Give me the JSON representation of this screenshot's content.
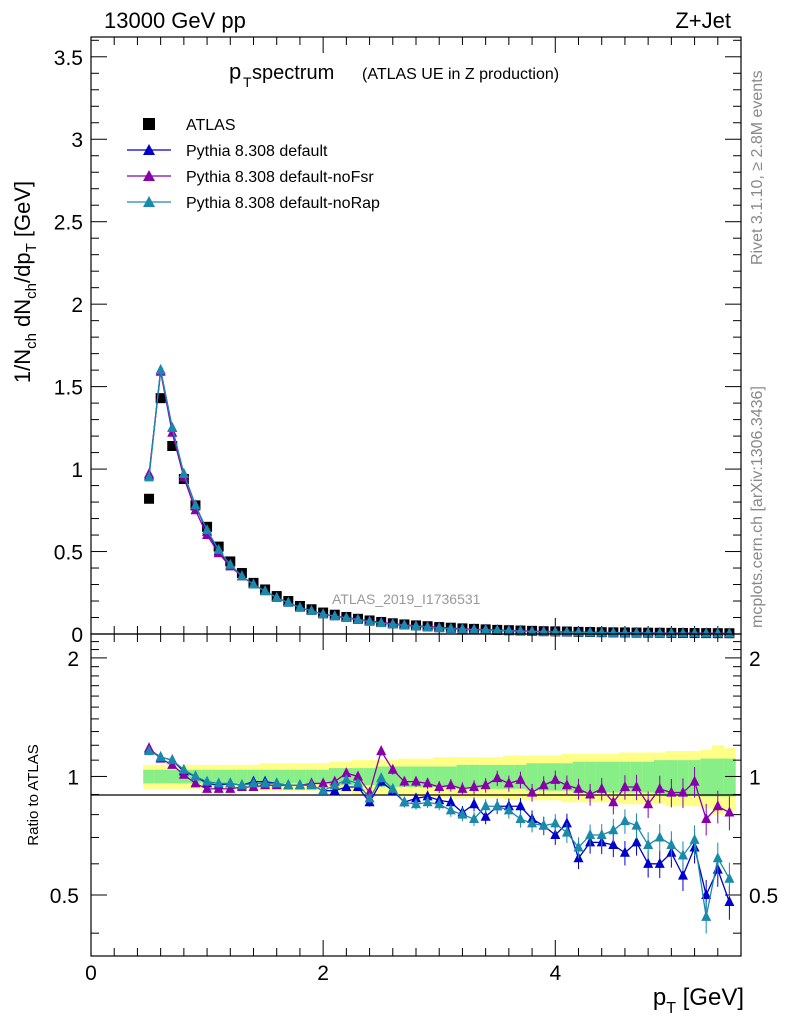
{
  "header": {
    "energy": "13000 GeV pp",
    "process": "Z+Jet"
  },
  "side_labels": {
    "rivet": "Rivet 3.1.10, ≥ 2.8M events",
    "source": "mcplots.cern.ch [arXiv:1306.3436]"
  },
  "chart_data": [
    {
      "type": "scatter",
      "panel": "main",
      "title": "(ATLAS UE in Z production)",
      "title_prefix": "p",
      "title_sub": "T",
      "title_suffix": " spectrum",
      "watermark": "ATLAS_2019_I1736531",
      "ylabel": "1/N_ch dN_ch/dp_T [GeV]",
      "xlim": [
        0,
        5.6
      ],
      "ylim": [
        0,
        3.62
      ],
      "yticks": [
        "0",
        "0.5",
        "1",
        "1.5",
        "2",
        "2.5",
        "3",
        "3.5"
      ],
      "grid": false,
      "legend_position": "top-left",
      "x": [
        0.5,
        0.6,
        0.7,
        0.8,
        0.9,
        1.0,
        1.1,
        1.2,
        1.3,
        1.4,
        1.5,
        1.6,
        1.7,
        1.8,
        1.9,
        2.0,
        2.1,
        2.2,
        2.3,
        2.4,
        2.5,
        2.6,
        2.7,
        2.8,
        2.9,
        3.0,
        3.1,
        3.2,
        3.3,
        3.4,
        3.5,
        3.6,
        3.7,
        3.8,
        3.9,
        4.0,
        4.1,
        4.2,
        4.3,
        4.4,
        4.5,
        4.6,
        4.7,
        4.8,
        4.9,
        5.0,
        5.1,
        5.2,
        5.3,
        5.4,
        5.5
      ],
      "series": [
        {
          "name": "ATLAS",
          "color": "#000000",
          "marker": "square",
          "values": [
            0.82,
            1.43,
            1.14,
            0.94,
            0.78,
            0.65,
            0.53,
            0.44,
            0.37,
            0.31,
            0.27,
            0.23,
            0.2,
            0.17,
            0.15,
            0.13,
            0.117,
            0.103,
            0.092,
            0.082,
            0.073,
            0.065,
            0.058,
            0.052,
            0.047,
            0.042,
            0.038,
            0.034,
            0.031,
            0.028,
            0.025,
            0.023,
            0.021,
            0.019,
            0.017,
            0.016,
            0.015,
            0.013,
            0.012,
            0.011,
            0.01,
            0.0095,
            0.0087,
            0.008,
            0.0074,
            0.0068,
            0.0063,
            0.0058,
            0.0054,
            0.005,
            0.0046
          ]
        },
        {
          "name": "Pythia 8.308 default",
          "color": "#0000cc",
          "marker": "triangle",
          "values": [
            0.96,
            1.6,
            1.25,
            0.97,
            0.78,
            0.62,
            0.5,
            0.42,
            0.35,
            0.3,
            0.26,
            0.22,
            0.19,
            0.16,
            0.14,
            0.12,
            0.108,
            0.097,
            0.086,
            0.075,
            0.067,
            0.058,
            0.052,
            0.046,
            0.041,
            0.036,
            0.032,
            0.029,
            0.026,
            0.024,
            0.021,
            0.019,
            0.017,
            0.015,
            0.013,
            0.012,
            0.01,
            0.009,
            0.008,
            0.0075,
            0.0068,
            0.006,
            0.0055,
            0.005,
            0.0045,
            0.0042,
            0.0038,
            0.0034,
            0.003,
            0.0028,
            0.0025
          ]
        },
        {
          "name": "Pythia 8.308 default-noFsr",
          "color": "#8800aa",
          "marker": "triangle",
          "values": [
            0.97,
            1.59,
            1.22,
            0.95,
            0.75,
            0.6,
            0.49,
            0.41,
            0.35,
            0.3,
            0.26,
            0.22,
            0.19,
            0.16,
            0.14,
            0.12,
            0.11,
            0.1,
            0.09,
            0.079,
            0.07,
            0.063,
            0.056,
            0.05,
            0.045,
            0.04,
            0.036,
            0.032,
            0.029,
            0.027,
            0.024,
            0.022,
            0.02,
            0.017,
            0.016,
            0.014,
            0.013,
            0.012,
            0.011,
            0.01,
            0.009,
            0.0085,
            0.0078,
            0.0072,
            0.0067,
            0.0062,
            0.0057,
            0.0052,
            0.0048,
            0.0045,
            0.0041
          ]
        },
        {
          "name": "Pythia 8.308 default-noRap",
          "color": "#1a8aaa",
          "marker": "triangle",
          "values": [
            0.95,
            1.6,
            1.25,
            0.97,
            0.78,
            0.63,
            0.51,
            0.42,
            0.35,
            0.3,
            0.26,
            0.22,
            0.19,
            0.16,
            0.14,
            0.12,
            0.108,
            0.097,
            0.086,
            0.074,
            0.066,
            0.058,
            0.052,
            0.046,
            0.041,
            0.036,
            0.032,
            0.029,
            0.026,
            0.024,
            0.021,
            0.019,
            0.017,
            0.015,
            0.013,
            0.012,
            0.011,
            0.0095,
            0.0085,
            0.0078,
            0.007,
            0.0065,
            0.0058,
            0.0053,
            0.0049,
            0.0045,
            0.004,
            0.0036,
            0.0032,
            0.0029,
            0.0026
          ]
        }
      ]
    },
    {
      "type": "line",
      "panel": "ratio",
      "ylabel": "Ratio to ATLAS",
      "xlabel": "p_T [GeV]",
      "xlim": [
        0,
        5.6
      ],
      "ylim": [
        0.35,
        2.3
      ],
      "yticks": [
        "0.5",
        "1",
        "2"
      ],
      "xticks": [
        "0",
        "2",
        "4"
      ],
      "grid": false,
      "band_inner": [
        0.04,
        0.04,
        0.04,
        0.04,
        0.04,
        0.04,
        0.04,
        0.04,
        0.04,
        0.04,
        0.04,
        0.04,
        0.04,
        0.04,
        0.04,
        0.04,
        0.05,
        0.05,
        0.05,
        0.05,
        0.06,
        0.06,
        0.06,
        0.06,
        0.06,
        0.06,
        0.06,
        0.07,
        0.07,
        0.07,
        0.07,
        0.07,
        0.07,
        0.08,
        0.08,
        0.08,
        0.08,
        0.09,
        0.09,
        0.09,
        0.09,
        0.09,
        0.09,
        0.09,
        0.1,
        0.1,
        0.1,
        0.1,
        0.11,
        0.11,
        0.11
      ],
      "band_outer": [
        0.07,
        0.07,
        0.07,
        0.07,
        0.07,
        0.07,
        0.07,
        0.07,
        0.07,
        0.07,
        0.08,
        0.08,
        0.08,
        0.08,
        0.08,
        0.08,
        0.09,
        0.09,
        0.1,
        0.1,
        0.1,
        0.1,
        0.11,
        0.11,
        0.11,
        0.12,
        0.12,
        0.12,
        0.12,
        0.12,
        0.12,
        0.13,
        0.13,
        0.13,
        0.13,
        0.13,
        0.14,
        0.14,
        0.14,
        0.14,
        0.14,
        0.15,
        0.15,
        0.15,
        0.15,
        0.16,
        0.16,
        0.16,
        0.17,
        0.2,
        0.18
      ],
      "series": [
        {
          "name": "Pythia 8.308 default",
          "color": "#0000cc",
          "values": [
            1.17,
            1.12,
            1.1,
            1.03,
            1.0,
            0.96,
            0.95,
            0.96,
            0.95,
            0.97,
            0.97,
            0.96,
            0.95,
            0.95,
            0.95,
            0.92,
            0.92,
            0.94,
            0.94,
            0.86,
            0.97,
            0.92,
            0.86,
            0.88,
            0.89,
            0.87,
            0.86,
            0.81,
            0.85,
            0.79,
            0.84,
            0.84,
            0.84,
            0.78,
            0.75,
            0.71,
            0.76,
            0.62,
            0.68,
            0.68,
            0.67,
            0.64,
            0.68,
            0.6,
            0.6,
            0.64,
            0.56,
            0.66,
            0.5,
            0.58,
            0.48
          ]
        },
        {
          "name": "Pythia 8.308 default-noFsr",
          "color": "#8800aa",
          "values": [
            1.18,
            1.11,
            1.07,
            1.01,
            0.96,
            0.93,
            0.93,
            0.93,
            0.94,
            0.94,
            0.95,
            0.95,
            0.95,
            0.95,
            0.96,
            0.96,
            0.97,
            1.02,
            1.0,
            0.91,
            1.16,
            1.04,
            0.97,
            0.97,
            0.96,
            0.94,
            0.95,
            0.93,
            0.94,
            0.95,
            0.99,
            0.96,
            0.98,
            0.91,
            0.95,
            0.98,
            0.95,
            0.93,
            0.9,
            0.93,
            0.86,
            0.94,
            0.94,
            0.85,
            0.93,
            0.91,
            0.91,
            0.97,
            0.78,
            0.84,
            0.81
          ]
        },
        {
          "name": "Pythia 8.308 default-noRap",
          "color": "#1a8aaa",
          "values": [
            1.16,
            1.12,
            1.1,
            1.04,
            1.0,
            0.97,
            0.96,
            0.96,
            0.95,
            0.96,
            0.96,
            0.96,
            0.95,
            0.95,
            0.95,
            0.92,
            0.95,
            0.98,
            0.96,
            0.88,
            0.99,
            0.93,
            0.86,
            0.85,
            0.86,
            0.85,
            0.82,
            0.8,
            0.78,
            0.84,
            0.84,
            0.82,
            0.78,
            0.76,
            0.75,
            0.76,
            0.72,
            0.66,
            0.71,
            0.71,
            0.73,
            0.77,
            0.75,
            0.67,
            0.7,
            0.67,
            0.63,
            0.69,
            0.44,
            0.62,
            0.55
          ]
        }
      ]
    }
  ]
}
